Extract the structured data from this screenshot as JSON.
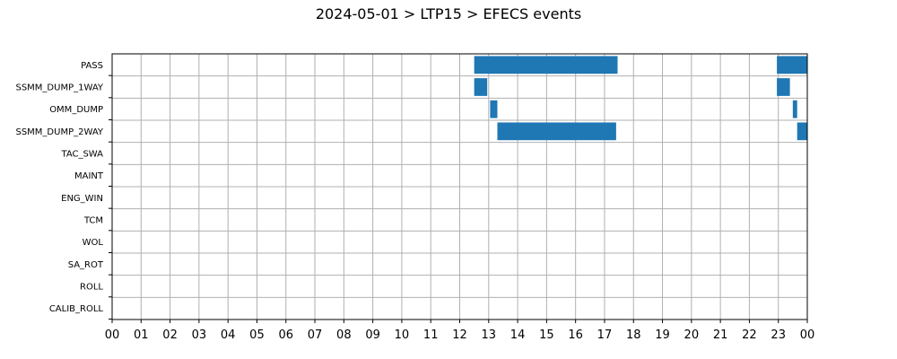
{
  "chart_data": {
    "type": "bar",
    "orientation": "horizontal",
    "title": "2024-05-01 > LTP15 > EFECS events",
    "xlabel": "",
    "ylabel": "",
    "xlim": [
      0,
      24
    ],
    "x_tick_labels": [
      "00",
      "01",
      "02",
      "03",
      "04",
      "05",
      "06",
      "07",
      "08",
      "09",
      "10",
      "11",
      "12",
      "13",
      "14",
      "15",
      "16",
      "17",
      "18",
      "19",
      "20",
      "21",
      "22",
      "23",
      "00"
    ],
    "categories": [
      "PASS",
      "SSMM_DUMP_1WAY",
      "OMM_DUMP",
      "SSMM_DUMP_2WAY",
      "TAC_SWA",
      "MAINT",
      "ENG_WIN",
      "TCM",
      "WOL",
      "SA_ROT",
      "ROLL",
      "CALIB_ROLL"
    ],
    "grid": true,
    "bar_color": "#1f77b4",
    "events": [
      {
        "category": "PASS",
        "start": 12.5,
        "end": 17.45
      },
      {
        "category": "PASS",
        "start": 22.95,
        "end": 24.0
      },
      {
        "category": "SSMM_DUMP_1WAY",
        "start": 12.5,
        "end": 12.95
      },
      {
        "category": "SSMM_DUMP_1WAY",
        "start": 22.95,
        "end": 23.4
      },
      {
        "category": "OMM_DUMP",
        "start": 13.05,
        "end": 13.3
      },
      {
        "category": "OMM_DUMP",
        "start": 23.5,
        "end": 23.65
      },
      {
        "category": "SSMM_DUMP_2WAY",
        "start": 13.3,
        "end": 17.4
      },
      {
        "category": "SSMM_DUMP_2WAY",
        "start": 23.65,
        "end": 24.0
      }
    ]
  }
}
